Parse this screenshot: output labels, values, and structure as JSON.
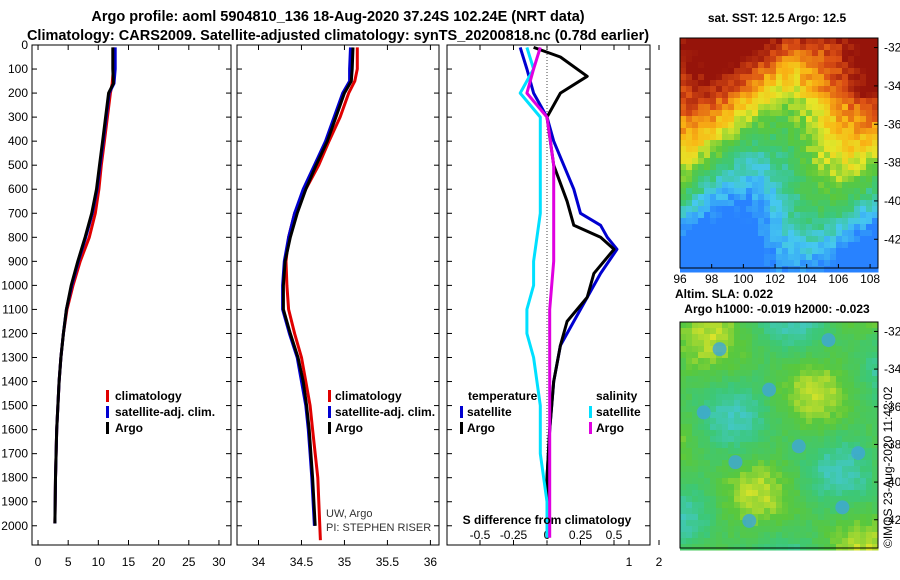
{
  "header": {
    "line1": "Argo profile: aoml 5904810_136 18-Aug-2020 37.24S 102.24E (NRT data)",
    "line2": "Climatology: CARS2009. Satellite-adjusted climatology: synTS_20200818.nc (0.78d earlier)"
  },
  "colors": {
    "climatology": "#e00000",
    "satellite": "#0000d0",
    "argo": "#000000",
    "sat_salinity": "#00e0ff",
    "argo_salinity": "#e000e0"
  },
  "chart_data": [
    {
      "type": "line",
      "name": "temperature-profile",
      "xlim": [
        -1,
        32
      ],
      "ylim": [
        2080,
        0
      ],
      "xticks": [
        0,
        5,
        10,
        15,
        20,
        25,
        30
      ],
      "yticks": [
        0,
        100,
        200,
        300,
        400,
        500,
        600,
        700,
        800,
        900,
        1000,
        1100,
        1200,
        1300,
        1400,
        1500,
        1600,
        1700,
        1800,
        1900,
        2000
      ],
      "legend": [
        "climatology",
        "satellite-adj. clim.",
        "Argo"
      ],
      "series": [
        {
          "name": "climatology",
          "color": "#e00000",
          "x": [
            12.6,
            12.5,
            12.3,
            12.0,
            11.5,
            11.0,
            10.5,
            10.1,
            9.5,
            8.5,
            7.0,
            5.8,
            4.8,
            4.2,
            3.8,
            3.5,
            3.3,
            3.1,
            3.0,
            2.9,
            2.8
          ],
          "y": [
            10,
            100,
            160,
            200,
            300,
            400,
            500,
            600,
            700,
            800,
            900,
            1000,
            1100,
            1200,
            1300,
            1400,
            1500,
            1600,
            1700,
            1800,
            1990
          ]
        },
        {
          "name": "satellite-adj. clim.",
          "color": "#0000d0",
          "x": [
            12.8,
            12.8,
            12.6,
            11.8,
            11.3,
            10.8,
            10.3,
            9.8,
            9.0,
            7.9,
            6.7,
            5.6,
            4.7,
            4.2,
            3.8,
            3.5,
            3.3,
            3.1,
            3.0,
            2.9,
            2.8
          ],
          "y": [
            10,
            100,
            160,
            200,
            300,
            400,
            500,
            600,
            700,
            800,
            900,
            1000,
            1100,
            1200,
            1300,
            1400,
            1500,
            1600,
            1700,
            1800,
            1990
          ]
        },
        {
          "name": "Argo",
          "color": "#000000",
          "x": [
            12.4,
            12.4,
            12.5,
            11.7,
            11.2,
            10.7,
            10.2,
            9.7,
            8.9,
            7.8,
            6.6,
            5.5,
            4.7,
            4.2,
            3.8,
            3.5,
            3.3,
            3.1,
            3.0,
            2.9,
            2.8
          ],
          "y": [
            10,
            100,
            160,
            200,
            300,
            400,
            500,
            600,
            700,
            800,
            900,
            1000,
            1100,
            1200,
            1300,
            1400,
            1500,
            1600,
            1700,
            1800,
            1990
          ]
        }
      ]
    },
    {
      "type": "line",
      "name": "salinity-profile",
      "xlim": [
        33.75,
        36.1
      ],
      "ylim": [
        2080,
        0
      ],
      "xticks": [
        34,
        34.5,
        35,
        35.5,
        36
      ],
      "legend": [
        "climatology",
        "satellite-adj. clim.",
        "Argo"
      ],
      "annotation": [
        "UW, Argo",
        "PI: STEPHEN RISER"
      ],
      "series": [
        {
          "name": "climatology",
          "color": "#e00000",
          "x": [
            35.15,
            35.15,
            35.12,
            35.05,
            34.95,
            34.82,
            34.7,
            34.55,
            34.42,
            34.35,
            34.32,
            34.33,
            34.35,
            34.42,
            34.5,
            34.55,
            34.6,
            34.63,
            34.66,
            34.69,
            34.72
          ],
          "y": [
            10,
            100,
            150,
            200,
            300,
            400,
            500,
            600,
            700,
            800,
            900,
            1000,
            1100,
            1200,
            1300,
            1400,
            1500,
            1600,
            1700,
            1800,
            2060
          ]
        },
        {
          "name": "satellite-adj. clim.",
          "color": "#0000d0",
          "x": [
            35.07,
            35.06,
            35.06,
            34.98,
            34.88,
            34.78,
            34.65,
            34.52,
            34.42,
            34.35,
            34.3,
            34.28,
            34.28,
            34.36,
            34.45,
            34.5,
            34.55,
            34.58,
            34.6,
            34.62,
            34.65
          ],
          "y": [
            10,
            100,
            150,
            200,
            300,
            400,
            500,
            600,
            700,
            800,
            900,
            1000,
            1100,
            1200,
            1300,
            1400,
            1500,
            1600,
            1700,
            1800,
            2000
          ]
        },
        {
          "name": "Argo",
          "color": "#000000",
          "x": [
            35.1,
            35.09,
            35.08,
            35.0,
            34.9,
            34.8,
            34.67,
            34.55,
            34.45,
            34.37,
            34.31,
            34.29,
            34.29,
            34.37,
            34.46,
            34.52,
            34.56,
            34.59,
            34.61,
            34.63,
            34.66
          ],
          "y": [
            10,
            100,
            150,
            200,
            300,
            400,
            500,
            600,
            700,
            800,
            900,
            1000,
            1100,
            1200,
            1300,
            1400,
            1500,
            1600,
            1700,
            1800,
            2000
          ]
        }
      ]
    },
    {
      "type": "line",
      "name": "difference-from-climatology",
      "xlabel": "S difference from climatology",
      "xlim": [
        -0.8,
        2.4
      ],
      "ylim": [
        2080,
        0
      ],
      "xticks": [
        -0.5,
        -0.25,
        0,
        0.25,
        0.5,
        1,
        2
      ],
      "xtick_labels": [
        "-0.5",
        "-0.25",
        "0",
        "0.25",
        "0.5",
        "1",
        "2"
      ],
      "legend": {
        "temperature": [
          "satellite",
          "Argo"
        ],
        "salinity": [
          "satellite",
          "Argo"
        ]
      },
      "series": [
        {
          "name": "temperature satellite",
          "color": "#0000d0",
          "x": [
            -0.2,
            -0.15,
            -0.1,
            0.0,
            0.05,
            0.2,
            0.25,
            0.4,
            0.45,
            0.6,
            0.4,
            0.3,
            0.2,
            0.1,
            0.05,
            0.02,
            0.0,
            0.0,
            0.0,
            0.0
          ],
          "y": [
            10,
            100,
            200,
            300,
            400,
            600,
            700,
            750,
            800,
            850,
            950,
            1050,
            1150,
            1250,
            1400,
            1600,
            1800,
            1900,
            2000,
            2050
          ]
        },
        {
          "name": "temperature Argo",
          "color": "#000000",
          "x": [
            -0.1,
            0.1,
            0.3,
            0.1,
            0.0,
            0.05,
            0.15,
            0.2,
            0.4,
            0.5,
            0.35,
            0.3,
            0.15,
            0.1,
            0.05,
            0.02,
            0.0,
            0.0
          ],
          "y": [
            10,
            50,
            130,
            200,
            300,
            500,
            650,
            750,
            800,
            850,
            950,
            1050,
            1150,
            1250,
            1400,
            1600,
            1800,
            2050
          ]
        },
        {
          "name": "salinity satellite",
          "color": "#00e0ff",
          "x": [
            -0.15,
            -0.1,
            -0.2,
            -0.05,
            -0.05,
            -0.05,
            -0.1,
            -0.1,
            -0.15,
            -0.15,
            -0.1,
            -0.05,
            -0.05,
            0.0,
            0.0
          ],
          "y": [
            10,
            100,
            200,
            300,
            500,
            700,
            900,
            1000,
            1100,
            1200,
            1300,
            1500,
            1700,
            1900,
            2050
          ]
        },
        {
          "name": "salinity Argo",
          "color": "#e000e0",
          "x": [
            -0.05,
            -0.1,
            -0.15,
            0.0,
            0.05,
            0.05,
            0.05,
            0.02,
            0.02,
            0.02,
            0.02,
            0.02,
            0.02
          ],
          "y": [
            10,
            100,
            200,
            300,
            500,
            700,
            900,
            1100,
            1300,
            1500,
            1700,
            1900,
            2050
          ]
        }
      ]
    },
    {
      "type": "heatmap",
      "name": "sst-map",
      "title": "sat. SST: 12.5 Argo: 12.5",
      "xlim": [
        96,
        108.5
      ],
      "ylim": [
        -43.5,
        -31.5
      ],
      "xticks": [
        96,
        98,
        100,
        102,
        104,
        106,
        108
      ],
      "yticks": [
        -32,
        -34,
        -36,
        -38,
        -40,
        -42
      ]
    },
    {
      "type": "heatmap",
      "name": "sla-map",
      "title": [
        "Altim. SLA: 0.022",
        "Argo h1000: -0.019 h2000: -0.023"
      ],
      "xlim": [
        96,
        108.5
      ],
      "ylim": [
        -43.5,
        -31.5
      ],
      "yticks": [
        -32,
        -34,
        -36,
        -38,
        -40,
        -42
      ]
    }
  ],
  "credit": "©IMOS 23-Aug-2020 11:42:02"
}
